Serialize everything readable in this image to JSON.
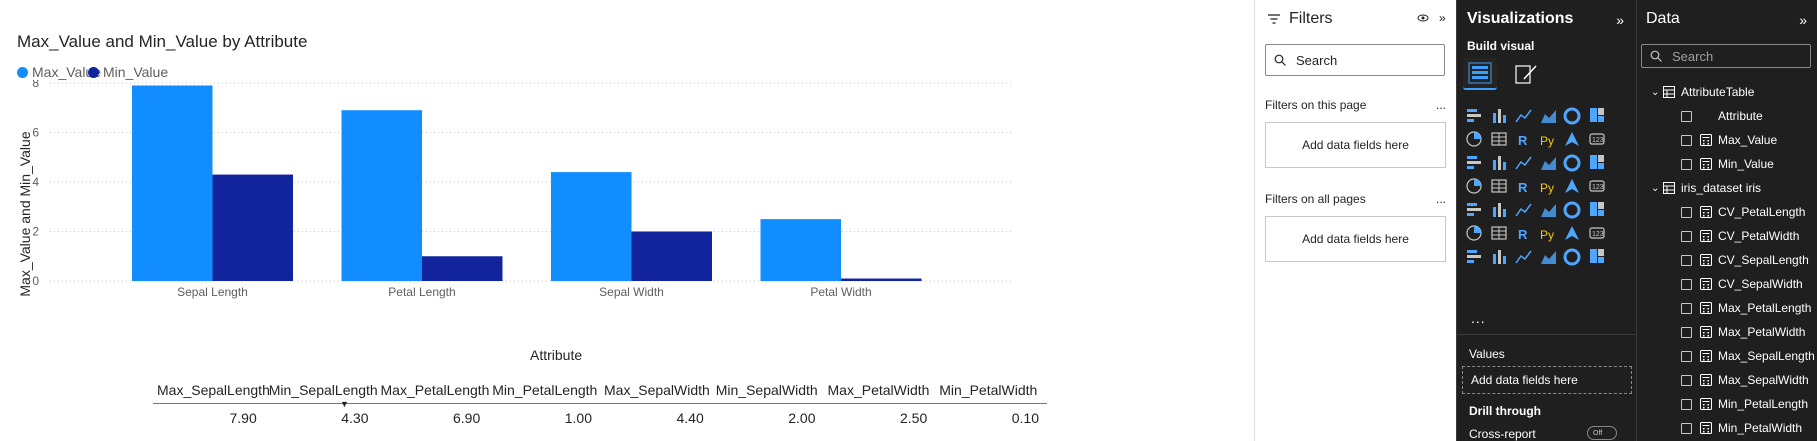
{
  "visual": {
    "title": "Max_Value and Min_Value by Attribute",
    "legend": [
      {
        "label": "Max_Value",
        "color": "#118DFF"
      },
      {
        "label": "Min_Value",
        "color": "#12239E"
      }
    ]
  },
  "chart_data": {
    "type": "bar",
    "title": "Max_Value and Min_Value by Attribute",
    "xlabel": "Attribute",
    "ylabel": "Max_Value and Min_Value",
    "categories": [
      "Sepal Length",
      "Petal Length",
      "Sepal Width",
      "Petal Width"
    ],
    "series": [
      {
        "name": "Max_Value",
        "values": [
          7.9,
          6.9,
          4.4,
          2.5
        ],
        "color": "#118DFF"
      },
      {
        "name": "Min_Value",
        "values": [
          4.3,
          1.0,
          2.0,
          0.1
        ],
        "color": "#12239E"
      }
    ],
    "ylim": [
      0,
      8
    ],
    "yticks": [
      "0",
      "2",
      "4",
      "6",
      "8"
    ],
    "grid": true,
    "legend": "top-left"
  },
  "table": {
    "headers": [
      "Max_SepalLength",
      "Min_SepalLength",
      "Max_PetalLength",
      "Min_PetalLength",
      "Max_SepalWidth",
      "Min_SepalWidth",
      "Max_PetalWidth",
      "Min_PetalWidth"
    ],
    "row": [
      "7.90",
      "4.30",
      "6.90",
      "1.00",
      "4.40",
      "2.00",
      "2.50",
      "0.10"
    ]
  },
  "filters": {
    "title": "Filters",
    "search_placeholder": "Search",
    "on_page_label": "Filters on this page",
    "on_all_label": "Filters on all pages",
    "add_fields": "Add data fields here",
    "more": "..."
  },
  "viz": {
    "title": "Visualizations",
    "build_visual": "Build visual",
    "more": "...",
    "values_label": "Values",
    "values_drop": "Add data fields here",
    "drill_through": "Drill through",
    "cross_report": "Cross-report",
    "toggle": "Off",
    "grid_icons": [
      "stacked-bar-icon",
      "stacked-column-icon",
      "clustered-bar-icon",
      "clustered-column-icon",
      "100-bar-icon",
      "100-column-icon",
      "line-chart-icon",
      "area-chart-icon",
      "stacked-area-icon",
      "line-column-icon",
      "line-clustered-column-icon",
      "ribbon-chart-icon",
      "waterfall-icon",
      "funnel-icon",
      "scatter-icon",
      "pie-icon",
      "donut-icon",
      "treemap-icon",
      "map-icon",
      "filled-map-icon",
      "azure-map-icon",
      "gauge-icon",
      "card-icon",
      "multi-row-card-icon",
      "kpi-icon",
      "slicer-icon",
      "table-icon",
      "matrix-icon",
      "r-visual-icon",
      "python-visual-icon",
      "key-influencers-icon",
      "decomposition-tree-icon",
      "qa-icon",
      "narrative-icon",
      "paginated-report-icon",
      "metrics-icon",
      "power-apps-icon",
      "power-automate-icon",
      "more-visuals-icon",
      "custom-visual-icon",
      "diamond-icon",
      "arrow-icon"
    ]
  },
  "data_pane": {
    "title": "Data",
    "search_placeholder": "Search",
    "tables": [
      {
        "name": "AttributeTable",
        "fields": [
          {
            "name": "Attribute",
            "type": "text"
          },
          {
            "name": "Max_Value",
            "type": "calc"
          },
          {
            "name": "Min_Value",
            "type": "calc"
          }
        ]
      },
      {
        "name": "iris_dataset iris",
        "fields": [
          {
            "name": "CV_PetalLength",
            "type": "calc"
          },
          {
            "name": "CV_PetalWidth",
            "type": "calc"
          },
          {
            "name": "CV_SepalLength",
            "type": "calc"
          },
          {
            "name": "CV_SepalWidth",
            "type": "calc"
          },
          {
            "name": "Max_PetalLength",
            "type": "calc"
          },
          {
            "name": "Max_PetalWidth",
            "type": "calc"
          },
          {
            "name": "Max_SepalLength",
            "type": "calc"
          },
          {
            "name": "Max_SepalWidth",
            "type": "calc"
          },
          {
            "name": "Min_PetalLength",
            "type": "calc"
          },
          {
            "name": "Min_PetalWidth",
            "type": "calc"
          }
        ]
      }
    ]
  }
}
